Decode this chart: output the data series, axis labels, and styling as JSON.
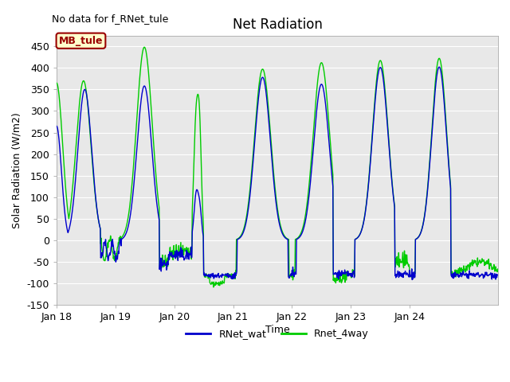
{
  "title": "Net Radiation",
  "xlabel": "Time",
  "ylabel": "Solar Radiation (W/m2)",
  "no_data_text": "No data for f_RNet_tule",
  "legend_label_box": "MB_tule",
  "ylim": [
    -150,
    475
  ],
  "xlim": [
    0,
    7.5
  ],
  "xtick_labels": [
    "Jan 18",
    "Jan 19",
    "Jan 20",
    "Jan 21",
    "Jan 22",
    "Jan 23",
    "Jan 24"
  ],
  "xtick_positions": [
    0,
    1,
    2,
    3,
    4,
    5,
    6
  ],
  "ytick_values": [
    -150,
    -100,
    -50,
    0,
    50,
    100,
    150,
    200,
    250,
    300,
    350,
    400,
    450
  ],
  "line_blue_color": "#0000cc",
  "line_green_color": "#00cc00",
  "bg_color": "#e8e8e8",
  "legend_blue_label": "RNet_wat",
  "legend_green_label": "Rnet_4way",
  "box_facecolor": "#ffffcc",
  "box_edgecolor": "#990000",
  "box_text_color": "#990000",
  "title_fontsize": 12,
  "axis_fontsize": 9
}
